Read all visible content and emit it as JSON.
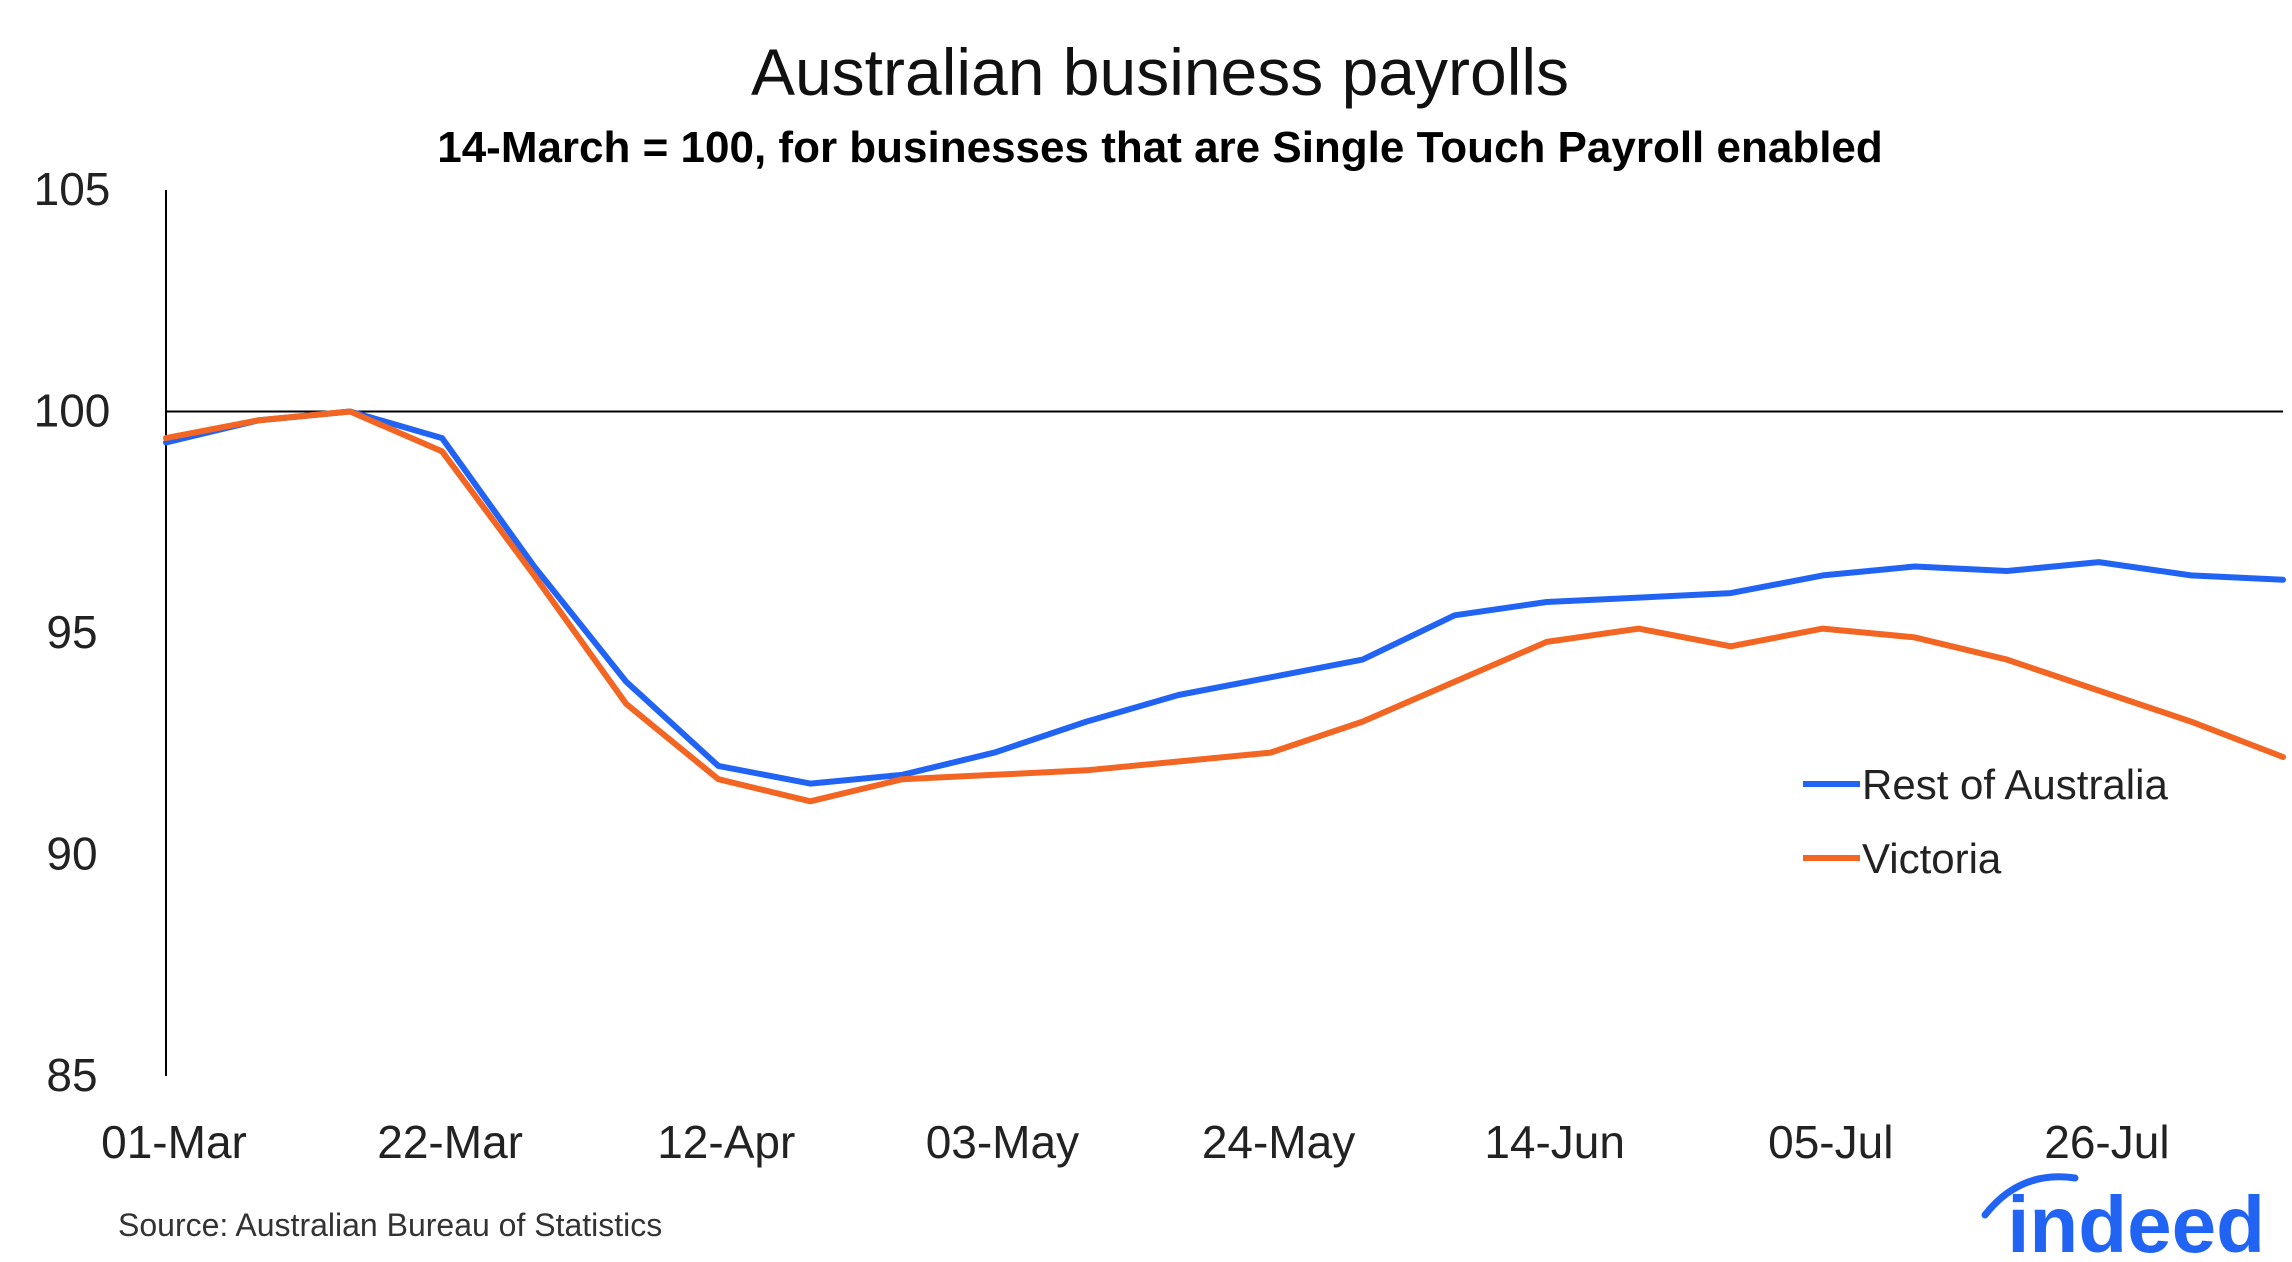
{
  "chart_data": {
    "type": "line",
    "title": "Australian business payrolls",
    "subtitle": "14-March = 100, for businesses that are Single Touch Payroll enabled",
    "xlabel": "",
    "ylabel": "",
    "ylim": [
      85,
      105
    ],
    "yticks": [
      85,
      90,
      95,
      100,
      105
    ],
    "xtick_labels": [
      "01-Mar",
      "22-Mar",
      "12-Apr",
      "03-May",
      "24-May",
      "14-Jun",
      "05-Jul",
      "26-Jul"
    ],
    "x": [
      "29-Feb",
      "07-Mar",
      "14-Mar",
      "21-Mar",
      "28-Mar",
      "04-Apr",
      "11-Apr",
      "18-Apr",
      "25-Apr",
      "02-May",
      "09-May",
      "16-May",
      "23-May",
      "30-May",
      "06-Jun",
      "13-Jun",
      "20-Jun",
      "27-Jun",
      "04-Jul",
      "11-Jul",
      "18-Jul",
      "25-Jul",
      "01-Aug",
      "08-Aug"
    ],
    "reference_line": 100,
    "grid": false,
    "legend_position": "right",
    "series": [
      {
        "name": "Rest of Australia",
        "color": "#2164f3",
        "values": [
          99.3,
          99.8,
          100.0,
          99.4,
          96.5,
          93.9,
          92.0,
          91.6,
          91.8,
          92.3,
          93.0,
          93.6,
          94.0,
          94.4,
          95.4,
          95.7,
          95.8,
          95.9,
          96.3,
          96.5,
          96.4,
          96.6,
          96.3,
          96.2
        ]
      },
      {
        "name": "Victoria",
        "color": "#f26522",
        "values": [
          99.4,
          99.8,
          100.0,
          99.1,
          96.3,
          93.4,
          91.7,
          91.2,
          91.7,
          91.8,
          91.9,
          92.1,
          92.3,
          93.0,
          93.9,
          94.8,
          95.1,
          94.7,
          95.1,
          94.9,
          94.4,
          93.7,
          93.0,
          92.2
        ]
      }
    ]
  },
  "source": "Source: Australian Bureau of Statistics",
  "logo": "indeed",
  "colors": {
    "logo": "#2164f3",
    "axis": "#000000"
  }
}
